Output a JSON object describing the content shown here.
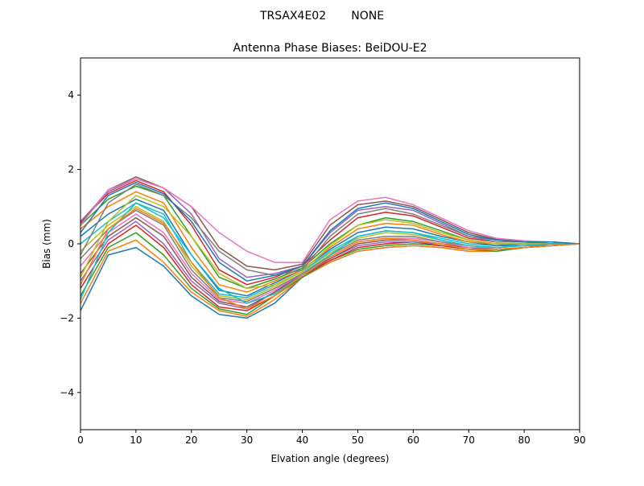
{
  "figure": {
    "suptitle": "TRSAX4E02       NONE"
  },
  "chart_data": {
    "type": "line",
    "title": "Antenna Phase Biases: BeiDOU-E2",
    "xlabel": "Elvation angle (degrees)",
    "ylabel": "Bias (mm)",
    "xlim": [
      0,
      90
    ],
    "ylim": [
      -5,
      5
    ],
    "xticks": [
      0,
      10,
      20,
      30,
      40,
      50,
      60,
      70,
      80,
      90
    ],
    "xtick_labels": [
      "0",
      "10",
      "20",
      "30",
      "40",
      "50",
      "60",
      "70",
      "80",
      "90"
    ],
    "yticks": [
      -4,
      -2,
      0,
      2,
      4
    ],
    "ytick_labels": [
      "−4",
      "−2",
      "0",
      "2",
      "4"
    ],
    "grid": false,
    "legend": "none",
    "colors": [
      "#1f77b4",
      "#ff7f0e",
      "#2ca02c",
      "#d62728",
      "#9467bd",
      "#8c564b",
      "#e377c2",
      "#7f7f7f",
      "#bcbd22",
      "#17becf"
    ],
    "x": [
      0,
      5,
      10,
      15,
      20,
      25,
      30,
      35,
      40,
      45,
      50,
      55,
      60,
      65,
      70,
      75,
      80,
      85,
      90
    ],
    "series": [
      {
        "values": [
          -1.8,
          -0.3,
          -0.1,
          -0.6,
          -1.4,
          -1.9,
          -2.0,
          -1.6,
          -0.9,
          -0.5,
          -0.2,
          -0.1,
          -0.05,
          -0.1,
          -0.2,
          -0.2,
          -0.1,
          -0.05,
          0
        ]
      },
      {
        "values": [
          -1.6,
          -0.2,
          0.1,
          -0.5,
          -1.3,
          -1.8,
          -1.95,
          -1.5,
          -0.9,
          -0.5,
          -0.2,
          -0.1,
          -0.05,
          -0.1,
          -0.2,
          -0.2,
          -0.1,
          -0.05,
          0
        ]
      },
      {
        "values": [
          -1.4,
          -0.1,
          0.3,
          -0.3,
          -1.2,
          -1.75,
          -1.9,
          -1.4,
          -0.9,
          -0.45,
          -0.15,
          -0.05,
          0,
          -0.05,
          -0.15,
          -0.2,
          -0.1,
          -0.05,
          0
        ]
      },
      {
        "values": [
          -1.2,
          0.0,
          0.5,
          -0.1,
          -1.1,
          -1.7,
          -1.8,
          -1.4,
          -0.85,
          -0.45,
          -0.1,
          0,
          0.05,
          -0.05,
          -0.15,
          -0.15,
          -0.1,
          -0.05,
          0
        ]
      },
      {
        "values": [
          -1.0,
          0.1,
          0.6,
          0.0,
          -1.0,
          -1.6,
          -1.75,
          -1.3,
          -0.85,
          -0.4,
          -0.05,
          0.05,
          0.05,
          0,
          -0.1,
          -0.15,
          -0.1,
          -0.05,
          0
        ]
      },
      {
        "values": [
          -0.8,
          0.2,
          0.7,
          0.2,
          -0.9,
          -1.55,
          -1.7,
          -1.3,
          -0.8,
          -0.4,
          0,
          0.1,
          0.1,
          0,
          -0.1,
          -0.15,
          -0.1,
          -0.05,
          0
        ]
      },
      {
        "values": [
          -0.6,
          0.3,
          0.8,
          0.3,
          -0.8,
          -1.5,
          -1.6,
          -1.25,
          -0.8,
          -0.35,
          0.05,
          0.15,
          0.15,
          0.05,
          -0.1,
          -0.1,
          -0.05,
          -0.05,
          0
        ]
      },
      {
        "values": [
          -0.4,
          0.4,
          0.9,
          0.5,
          -0.7,
          -1.45,
          -1.55,
          -1.2,
          -0.8,
          -0.3,
          0.1,
          0.2,
          0.2,
          0.05,
          -0.05,
          -0.1,
          -0.05,
          -0.05,
          0
        ]
      },
      {
        "values": [
          -0.2,
          0.5,
          1.0,
          0.6,
          -0.6,
          -1.4,
          -1.5,
          -1.15,
          -0.75,
          -0.25,
          0.15,
          0.3,
          0.25,
          0.1,
          -0.05,
          -0.1,
          -0.05,
          0,
          0
        ]
      },
      {
        "values": [
          0.0,
          0.6,
          1.1,
          0.8,
          -0.5,
          -1.35,
          -1.45,
          -1.1,
          -0.75,
          -0.2,
          0.2,
          0.35,
          0.3,
          0.15,
          0,
          -0.05,
          -0.05,
          0,
          0
        ]
      },
      {
        "values": [
          0.2,
          0.8,
          1.2,
          0.9,
          -0.3,
          -1.25,
          -1.4,
          -1.05,
          -0.7,
          -0.15,
          0.3,
          0.45,
          0.4,
          0.2,
          0.05,
          -0.05,
          0,
          0,
          0
        ]
      },
      {
        "values": [
          0.4,
          1.0,
          1.4,
          1.1,
          -0.1,
          -1.1,
          -1.3,
          -1.0,
          -0.7,
          -0.1,
          0.4,
          0.55,
          0.5,
          0.25,
          0.05,
          0,
          0,
          0,
          0
        ]
      },
      {
        "values": [
          0.5,
          1.2,
          1.55,
          1.3,
          0.2,
          -0.9,
          -1.2,
          -0.95,
          -0.65,
          0,
          0.5,
          0.7,
          0.6,
          0.35,
          0.1,
          0,
          0,
          0,
          0
        ]
      },
      {
        "values": [
          0.6,
          1.35,
          1.7,
          1.4,
          0.5,
          -0.7,
          -1.1,
          -0.9,
          -0.6,
          0.1,
          0.7,
          0.85,
          0.75,
          0.45,
          0.15,
          0.05,
          0.05,
          0,
          0
        ]
      },
      {
        "values": [
          0.6,
          1.4,
          1.75,
          1.5,
          0.8,
          -0.4,
          -0.9,
          -0.8,
          -0.6,
          0.3,
          0.9,
          1.0,
          0.9,
          0.55,
          0.2,
          0.1,
          0.05,
          0.05,
          0
        ]
      },
      {
        "values": [
          0.55,
          1.45,
          1.8,
          1.5,
          1.0,
          -0.1,
          -0.6,
          -0.7,
          -0.55,
          0.5,
          1.05,
          1.15,
          1.0,
          0.65,
          0.3,
          0.12,
          0.06,
          0.05,
          0
        ]
      },
      {
        "values": [
          0.5,
          1.45,
          1.75,
          1.5,
          1.0,
          0.3,
          -0.2,
          -0.5,
          -0.5,
          0.65,
          1.15,
          1.25,
          1.05,
          0.7,
          0.35,
          0.15,
          0.08,
          0.05,
          0
        ]
      },
      {
        "values": [
          -0.3,
          1.1,
          1.6,
          1.3,
          0.7,
          -0.2,
          -0.7,
          -0.85,
          -0.7,
          0.2,
          0.8,
          0.95,
          0.8,
          0.5,
          0.2,
          0.05,
          0.05,
          0,
          0
        ]
      },
      {
        "values": [
          -0.9,
          0.6,
          1.3,
          1.0,
          0.2,
          -0.8,
          -1.2,
          -1.1,
          -0.75,
          -0.05,
          0.5,
          0.65,
          0.55,
          0.3,
          0.1,
          0,
          0,
          0,
          0
        ]
      },
      {
        "values": [
          -1.5,
          0.3,
          1.1,
          0.7,
          -0.3,
          -1.2,
          -1.6,
          -1.35,
          -0.85,
          -0.3,
          0.2,
          0.35,
          0.3,
          0.1,
          -0.05,
          -0.1,
          -0.05,
          0,
          0
        ]
      },
      {
        "values": [
          0.3,
          1.3,
          1.65,
          1.35,
          0.6,
          -0.5,
          -1.0,
          -0.85,
          -0.6,
          0.35,
          0.95,
          1.1,
          0.95,
          0.6,
          0.25,
          0.1,
          0.05,
          0.05,
          0
        ]
      },
      {
        "values": [
          -1.1,
          0.4,
          0.95,
          0.55,
          -0.5,
          -1.45,
          -1.75,
          -1.4,
          -0.85,
          -0.35,
          0.05,
          0.15,
          0.1,
          0,
          -0.15,
          -0.15,
          -0.1,
          -0.05,
          0
        ]
      }
    ]
  }
}
